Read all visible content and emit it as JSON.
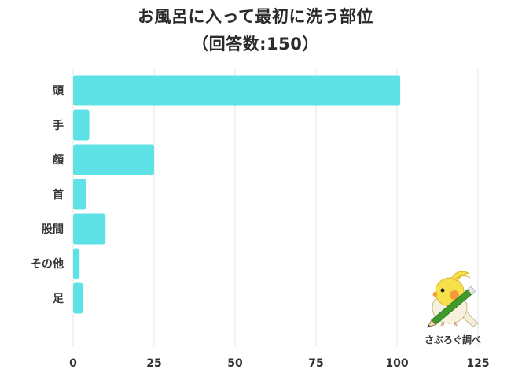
{
  "chart_data": {
    "type": "bar",
    "orientation": "horizontal",
    "title": "お風呂に入って最初に洗う部位",
    "subtitle": "（回答数:150）",
    "categories": [
      "頭",
      "手",
      "顔",
      "首",
      "股間",
      "その他",
      "足"
    ],
    "values": [
      101,
      5,
      25,
      4,
      10,
      2,
      3
    ],
    "xlim": [
      0,
      125
    ],
    "xticks": [
      0,
      25,
      50,
      75,
      100,
      125
    ],
    "grid": true,
    "bar_color": "#5ee2e6",
    "grid_color": "#e6e6e6"
  },
  "credit": {
    "label": "さぶろぐ調べ"
  },
  "mascot": {
    "icon": "cockatiel-with-pencil-icon",
    "body_color": "#f7e04a",
    "cheek_color": "#f29a3a",
    "pencil_color": "#3e9a2a"
  }
}
